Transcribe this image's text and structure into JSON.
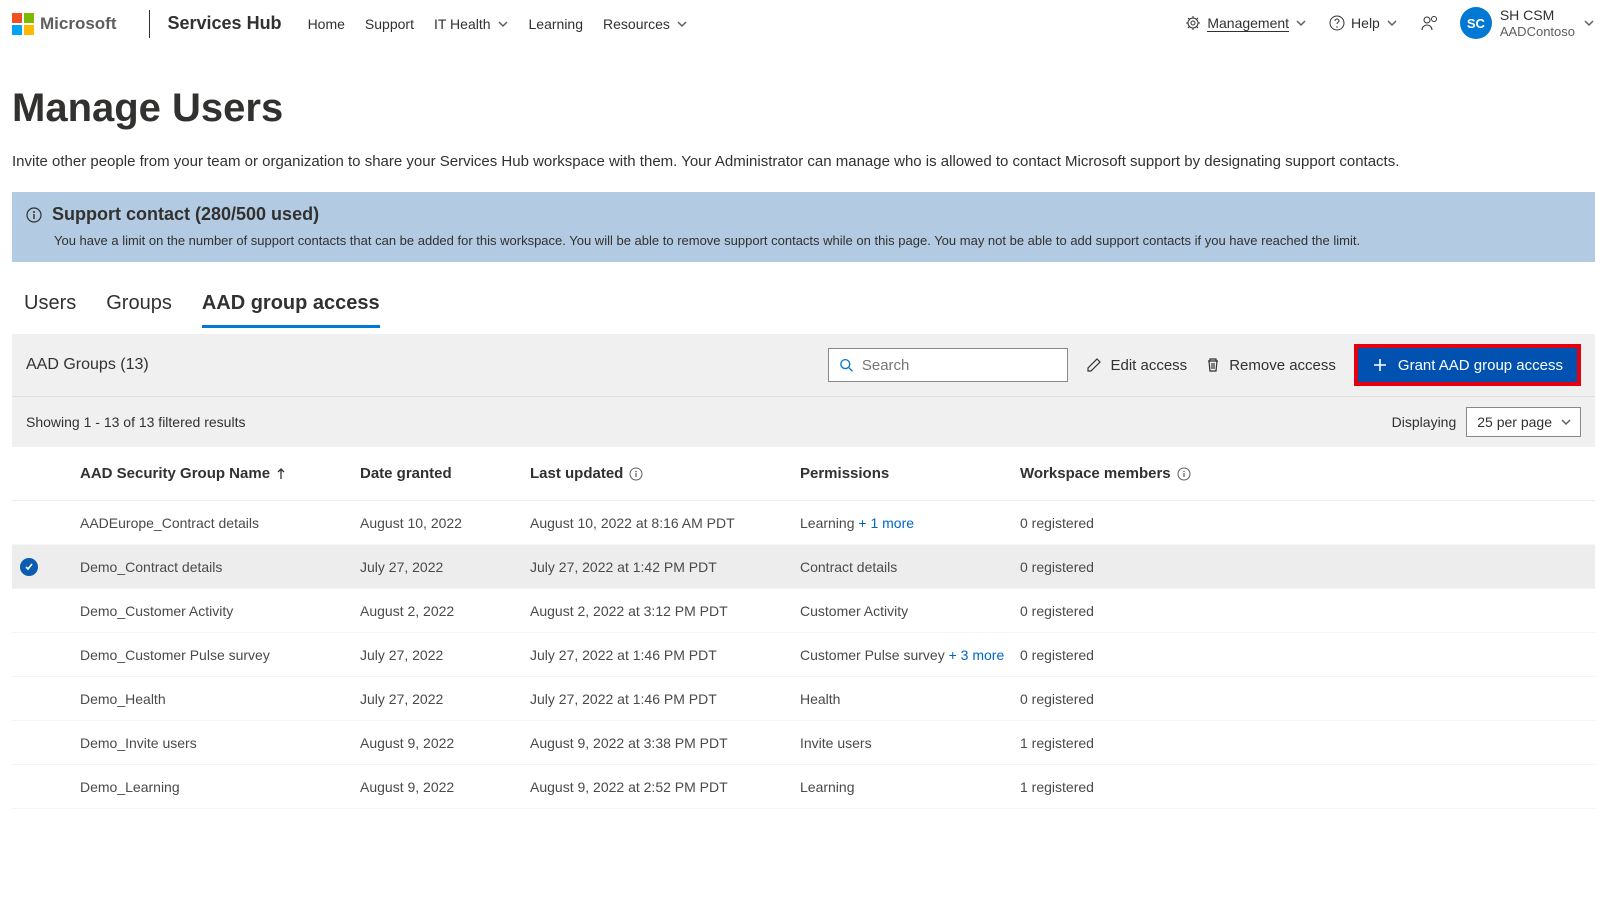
{
  "header": {
    "logo_text": "Microsoft",
    "brand": "Services Hub",
    "nav": {
      "home": "Home",
      "support": "Support",
      "ithealth": "IT Health",
      "learning": "Learning",
      "resources": "Resources"
    },
    "right": {
      "management": "Management",
      "help": "Help"
    },
    "user": {
      "initials": "SC",
      "name": "SH CSM",
      "org": "AADContoso"
    }
  },
  "page": {
    "title": "Manage Users",
    "description": "Invite other people from your team or organization to share your Services Hub workspace with them. Your Administrator can manage who is allowed to contact Microsoft support by designating support contacts."
  },
  "banner": {
    "title": "Support contact (280/500 used)",
    "body": "You have a limit on the number of support contacts that can be added for this workspace. You will be able to remove support contacts while on this page. You may not be able to add support contacts if you have reached the limit."
  },
  "tabs": {
    "users": "Users",
    "groups": "Groups",
    "aad": "AAD group access"
  },
  "toolbar": {
    "title": "AAD Groups (13)",
    "search_placeholder": "Search",
    "edit": "Edit access",
    "remove": "Remove access",
    "grant": "Grant AAD group access"
  },
  "results": {
    "showing": "Showing 1 - 13 of 13 filtered results",
    "displaying_label": "Displaying",
    "per_page": "25 per page"
  },
  "columns": {
    "name": "AAD Security Group Name",
    "granted": "Date granted",
    "updated": "Last updated",
    "permissions": "Permissions",
    "members": "Workspace members"
  },
  "rows": [
    {
      "name": "AADEurope_Contract details",
      "granted": "August 10, 2022",
      "updated": "August 10, 2022 at 8:16 AM PDT",
      "perm": "Learning",
      "perm_more": "+ 1 more",
      "members": "0 registered",
      "selected": false
    },
    {
      "name": "Demo_Contract details",
      "granted": "July 27, 2022",
      "updated": "July 27, 2022 at 1:42 PM PDT",
      "perm": "Contract details",
      "perm_more": "",
      "members": "0 registered",
      "selected": true
    },
    {
      "name": "Demo_Customer Activity",
      "granted": "August 2, 2022",
      "updated": "August 2, 2022 at 3:12 PM PDT",
      "perm": "Customer Activity",
      "perm_more": "",
      "members": "0 registered",
      "selected": false
    },
    {
      "name": "Demo_Customer Pulse survey",
      "granted": "July 27, 2022",
      "updated": "July 27, 2022 at 1:46 PM PDT",
      "perm": "Customer Pulse survey",
      "perm_more": "+ 3 more",
      "members": "0 registered",
      "selected": false
    },
    {
      "name": "Demo_Health",
      "granted": "July 27, 2022",
      "updated": "July 27, 2022 at 1:46 PM PDT",
      "perm": "Health",
      "perm_more": "",
      "members": "0 registered",
      "selected": false
    },
    {
      "name": "Demo_Invite users",
      "granted": "August 9, 2022",
      "updated": "August 9, 2022 at 3:38 PM PDT",
      "perm": "Invite users",
      "perm_more": "",
      "members": "1 registered",
      "selected": false
    },
    {
      "name": "Demo_Learning",
      "granted": "August 9, 2022",
      "updated": "August 9, 2022 at 2:52 PM PDT",
      "perm": "Learning",
      "perm_more": "",
      "members": "1 registered",
      "selected": false
    }
  ],
  "colors": {
    "accent": "#0078d4",
    "banner_bg": "#b2cbe2",
    "highlight_border": "#e3000f",
    "link": "#0066cc"
  }
}
